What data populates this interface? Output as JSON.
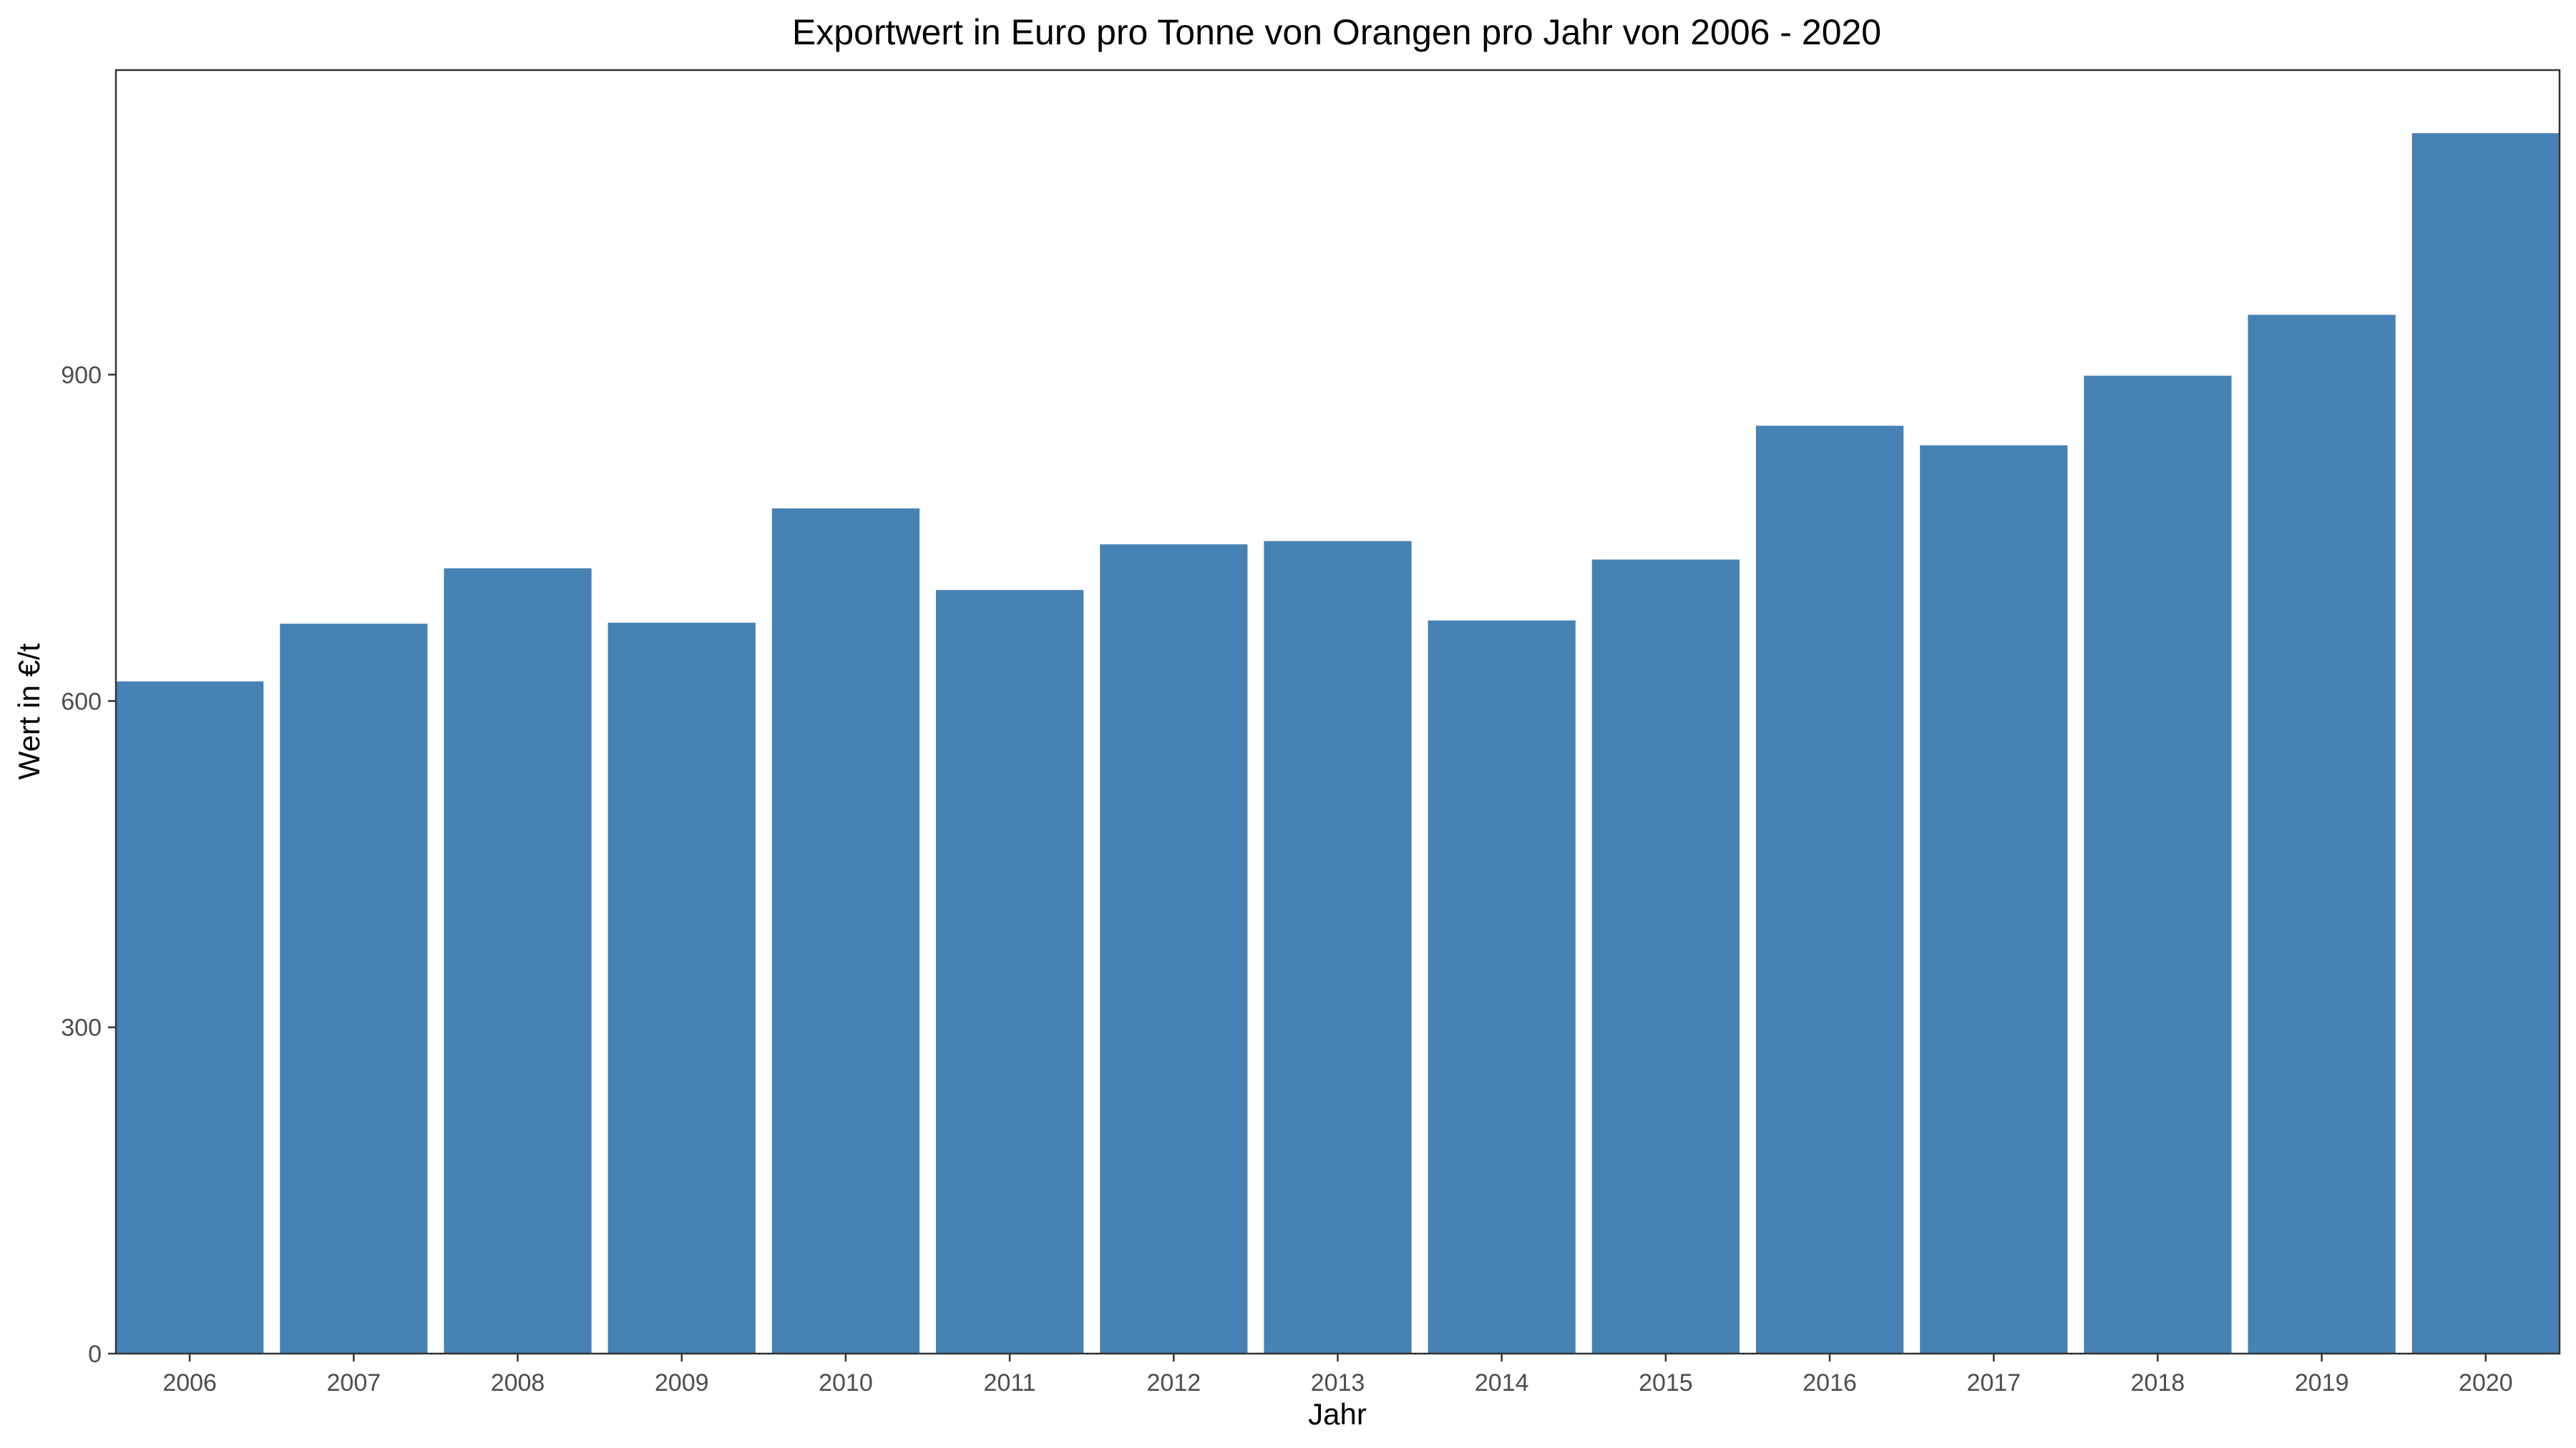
{
  "chart_data": {
    "type": "bar",
    "title": "Exportwert in Euro pro Tonne von Orangen pro Jahr von 2006 - 2020",
    "xlabel": "Jahr",
    "ylabel": "Wert in €/t",
    "categories": [
      "2006",
      "2007",
      "2008",
      "2009",
      "2010",
      "2011",
      "2012",
      "2013",
      "2014",
      "2015",
      "2016",
      "2017",
      "2018",
      "2019",
      "2020"
    ],
    "values": [
      618,
      671,
      722,
      672,
      777,
      702,
      744,
      747,
      674,
      730,
      853,
      835,
      899,
      955,
      1122
    ],
    "ylim": [
      0,
      1180
    ],
    "yticks": [
      0,
      300,
      600,
      900
    ],
    "bar_color": "#4682B4",
    "grid": false,
    "legend": "none"
  }
}
